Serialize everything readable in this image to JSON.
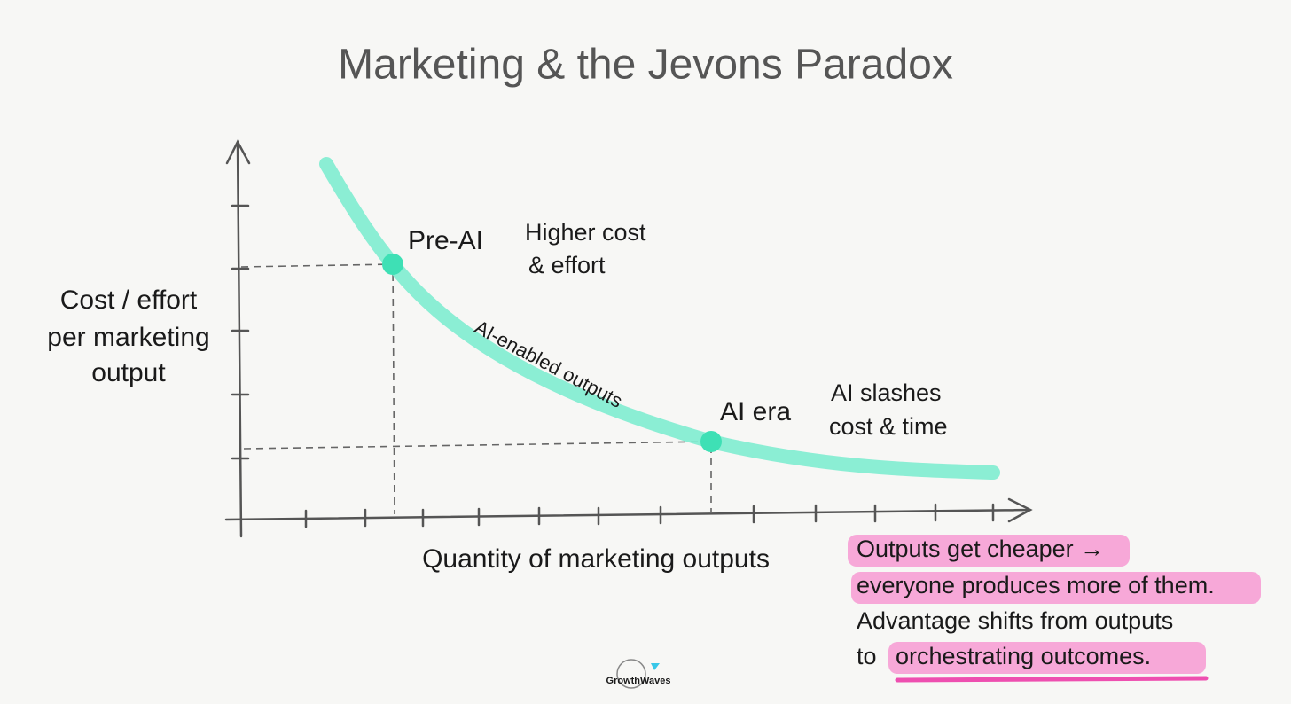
{
  "title": "Marketing & the Jevons Paradox",
  "axes": {
    "y_label": [
      "Cost / effort",
      "per marketing",
      "output"
    ],
    "x_label": "Quantity of marketing outputs"
  },
  "points": [
    {
      "label": "Pre-AI",
      "note": [
        "Higher cost",
        "& effort"
      ]
    },
    {
      "label": "AI era",
      "note": [
        "AI slashes",
        "cost & time"
      ]
    }
  ],
  "curve_label": "AI-enabled outputs",
  "takeaway": {
    "lines": [
      "Outputs get cheaper →",
      "everyone produces more of them.",
      "Advantage shifts from outputs"
    ],
    "last_prefix": "to",
    "last_highlight": "orchestrating outcomes."
  },
  "logo": "GrowthWaves"
}
